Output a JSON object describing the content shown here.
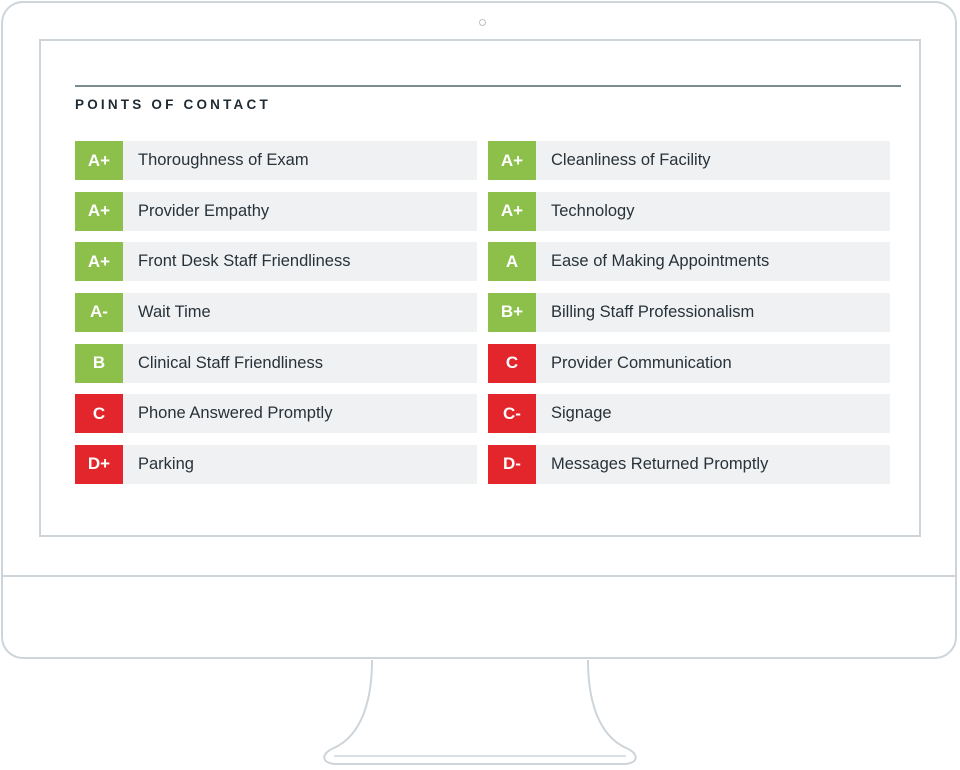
{
  "section": {
    "title": "POINTS OF CONTACT"
  },
  "colors": {
    "good": "#8cc04b",
    "bad": "#e2262b",
    "row_background": "#f0f1f2",
    "frame": "#cdd5da"
  },
  "left_items": [
    {
      "grade": "A+",
      "label": "Thoroughness of Exam",
      "status": "good"
    },
    {
      "grade": "A+",
      "label": "Provider Empathy",
      "status": "good"
    },
    {
      "grade": "A+",
      "label": "Front Desk Staff Friendliness",
      "status": "good"
    },
    {
      "grade": "A-",
      "label": "Wait Time",
      "status": "good"
    },
    {
      "grade": "B",
      "label": "Clinical Staff Friendliness",
      "status": "good"
    },
    {
      "grade": "C",
      "label": "Phone Answered Promptly",
      "status": "bad"
    },
    {
      "grade": "D+",
      "label": "Parking",
      "status": "bad"
    }
  ],
  "right_items": [
    {
      "grade": "A+",
      "label": "Cleanliness of Facility",
      "status": "good"
    },
    {
      "grade": "A+",
      "label": "Technology",
      "status": "good"
    },
    {
      "grade": "A",
      "label": "Ease of Making Appointments",
      "status": "good"
    },
    {
      "grade": "B+",
      "label": "Billing Staff Professionalism",
      "status": "good"
    },
    {
      "grade": "C",
      "label": "Provider Communication",
      "status": "bad"
    },
    {
      "grade": "C-",
      "label": "Signage",
      "status": "bad"
    },
    {
      "grade": "D-",
      "label": "Messages Returned Promptly",
      "status": "bad"
    }
  ]
}
